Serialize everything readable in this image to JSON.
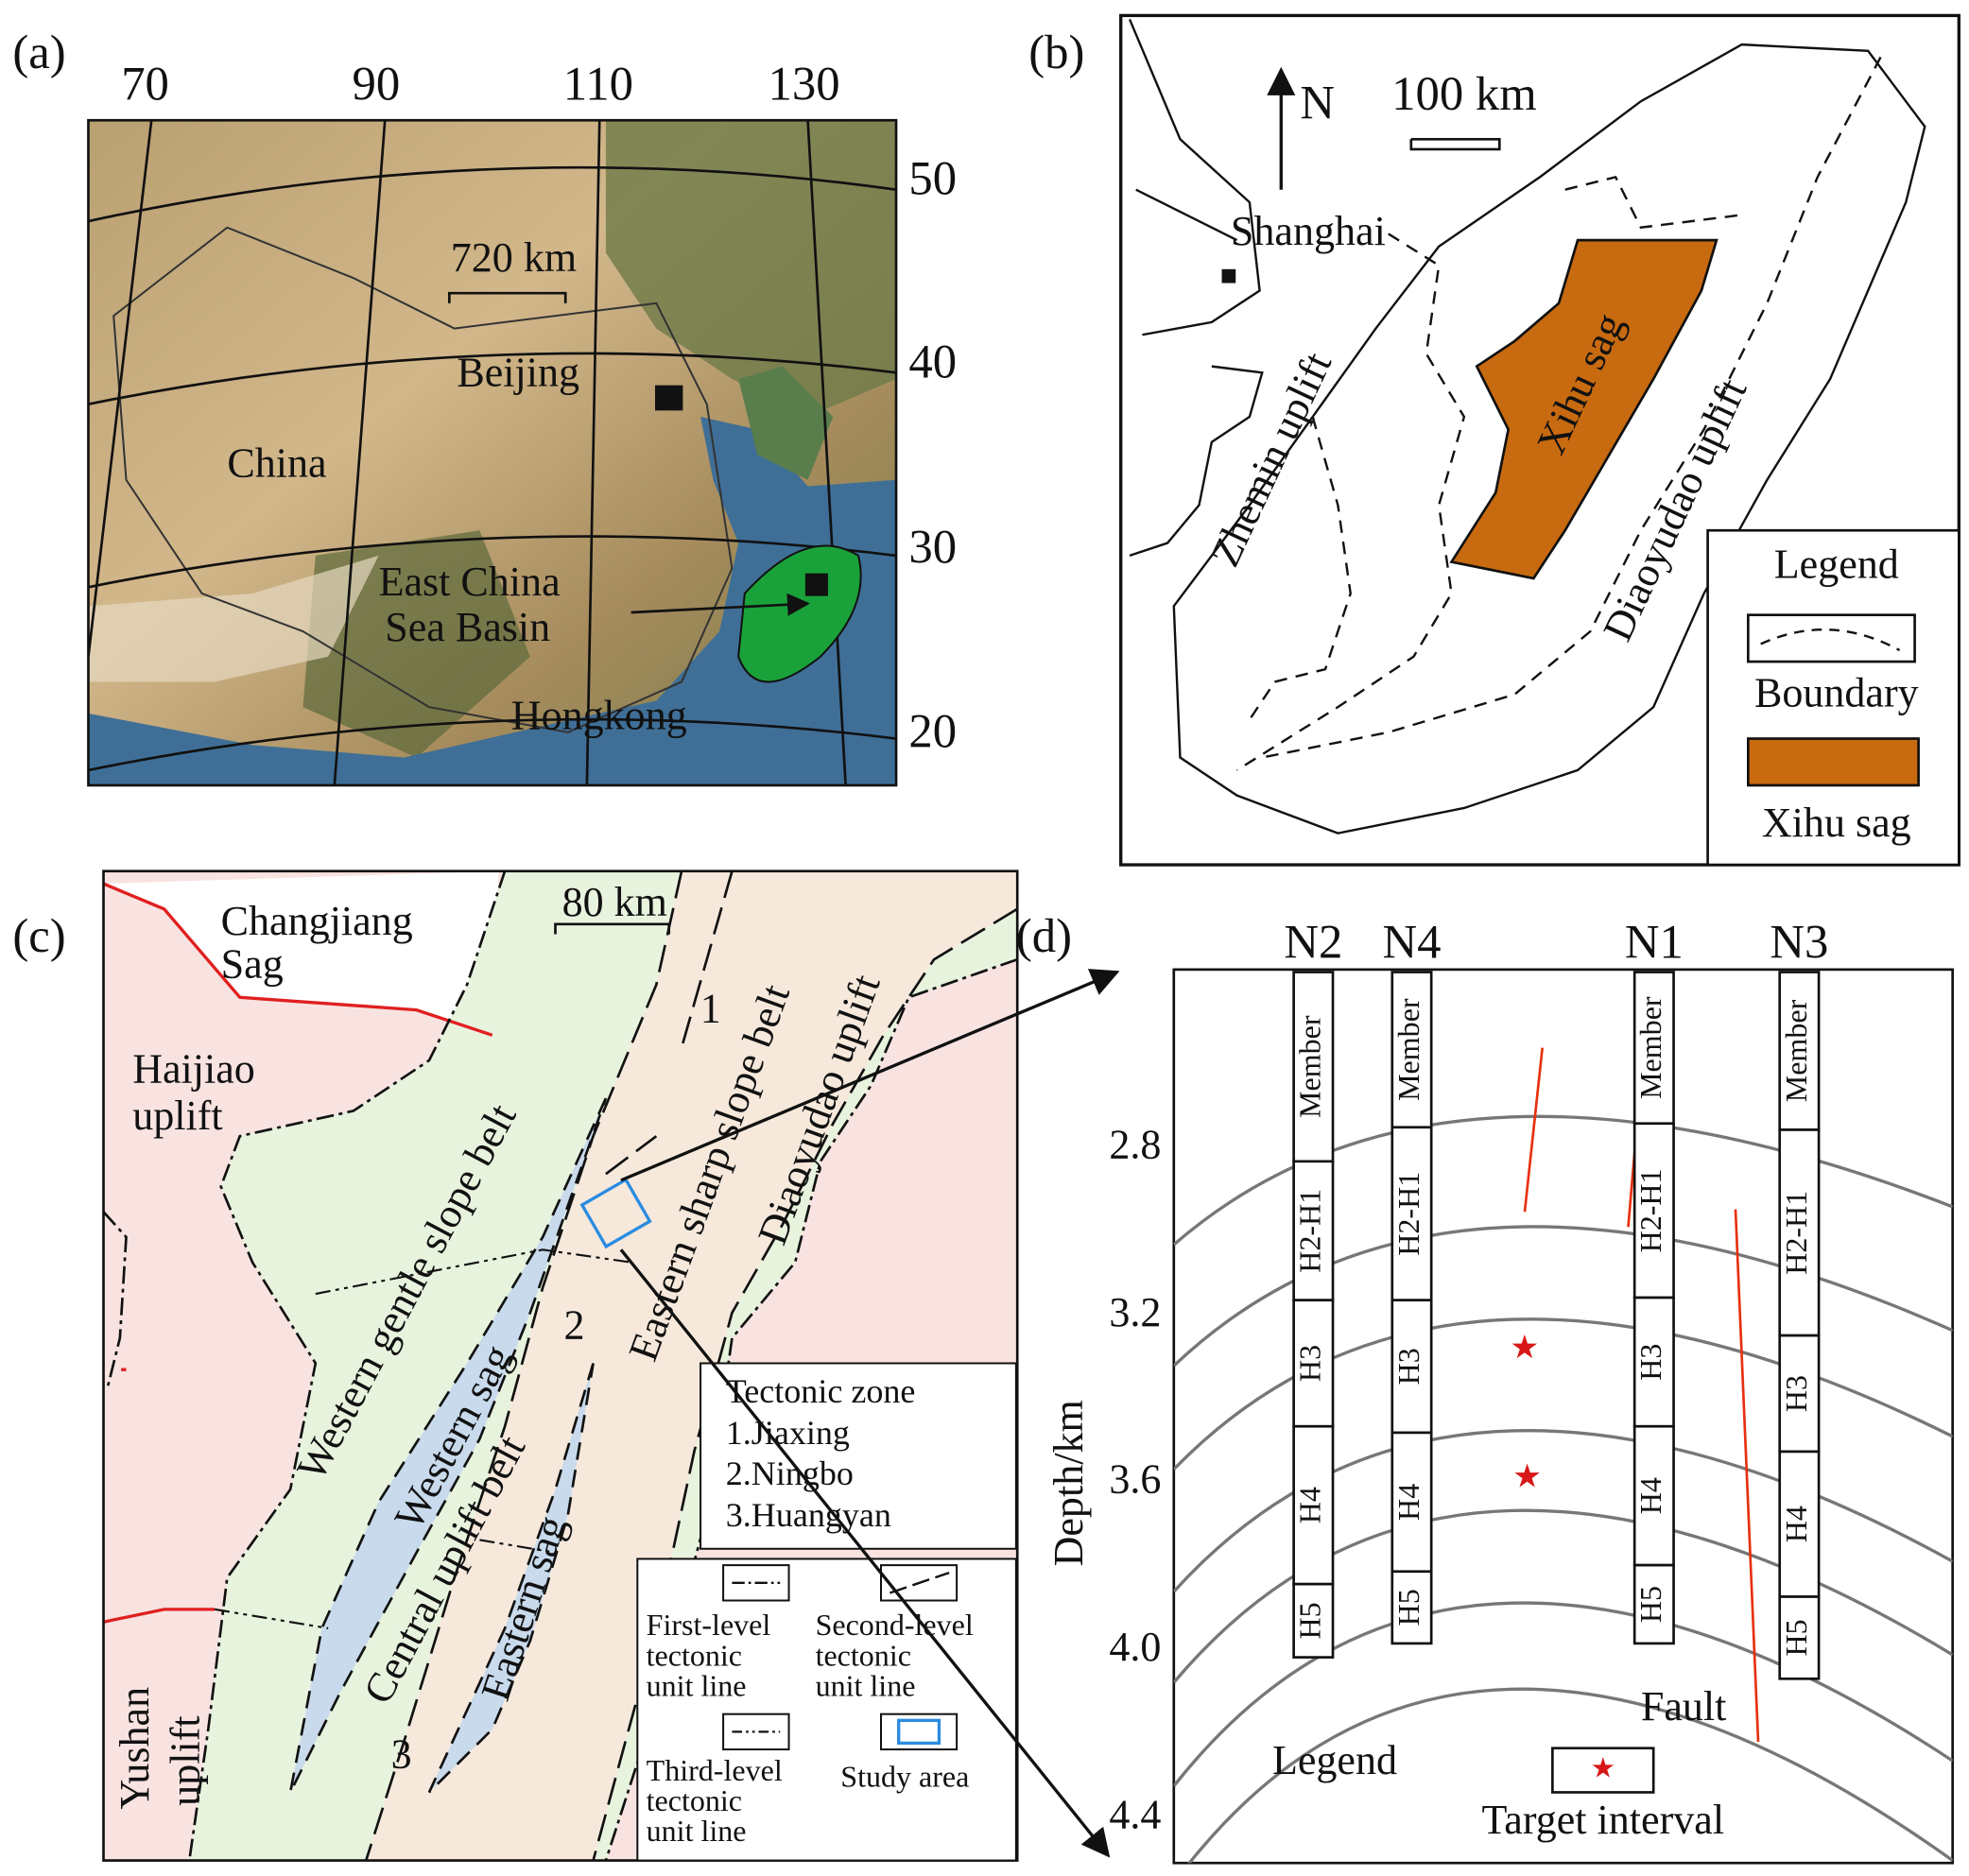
{
  "panel_a": {
    "label": "(a)",
    "longitudes": [
      "70",
      "90",
      "110",
      "130"
    ],
    "latitudes": [
      "50",
      "40",
      "30",
      "20"
    ],
    "scale": "720 km",
    "places": [
      "Beijing",
      "China",
      "East China",
      "Sea Basin",
      "Hongkong"
    ]
  },
  "panel_b": {
    "label": "(b)",
    "north": "N",
    "scale": "100 km",
    "places": [
      "Shanghai",
      "Zhemin uplift",
      "Xihu sag",
      "Diaoyudao uplift"
    ],
    "legend": {
      "title": "Legend",
      "items": [
        "Boundary",
        "Xihu sag"
      ]
    }
  },
  "panel_c": {
    "label": "(c)",
    "scale": "80 km",
    "places": [
      "Changjiang",
      "Sag",
      "Haijiao",
      "uplift",
      "Western gentle slope belt",
      "Western sag",
      "Central uplift belt",
      "Eastern sag",
      "Eastern sharp slope belt",
      "Diaoyudao uplift",
      "Yushan",
      "uplift",
      "1",
      "2",
      "3"
    ],
    "tectonic_zone": {
      "title": "Tectonic zone",
      "items": [
        "1.Jiaxing",
        "2.Ningbo",
        "3.Huangyan"
      ]
    },
    "line_legend": [
      "First-level",
      "tectonic",
      "unit line",
      "Second-level",
      "tectonic",
      "unit line",
      "Third-level",
      "tectonic",
      "unit line",
      "Study area"
    ]
  },
  "panel_d": {
    "label": "(d)",
    "y_axis": "Depth/km",
    "depths": [
      "2.8",
      "3.2",
      "3.6",
      "4.0",
      "4.4"
    ],
    "wells": [
      {
        "name": "N2",
        "units": [
          "Member",
          "H2-H1",
          "H3",
          "H4",
          "H5"
        ]
      },
      {
        "name": "N4",
        "units": [
          "Member",
          "H2-H1",
          "H3",
          "H4",
          "H5"
        ]
      },
      {
        "name": "N1",
        "units": [
          "Member",
          "H2-H1",
          "H3",
          "H4",
          "H5"
        ]
      },
      {
        "name": "N3",
        "units": [
          "Member",
          "H2-H1",
          "H3",
          "H4",
          "H5"
        ]
      }
    ],
    "fault": "Fault",
    "legend": {
      "title": "Legend",
      "items": [
        "Target interval"
      ]
    }
  }
}
